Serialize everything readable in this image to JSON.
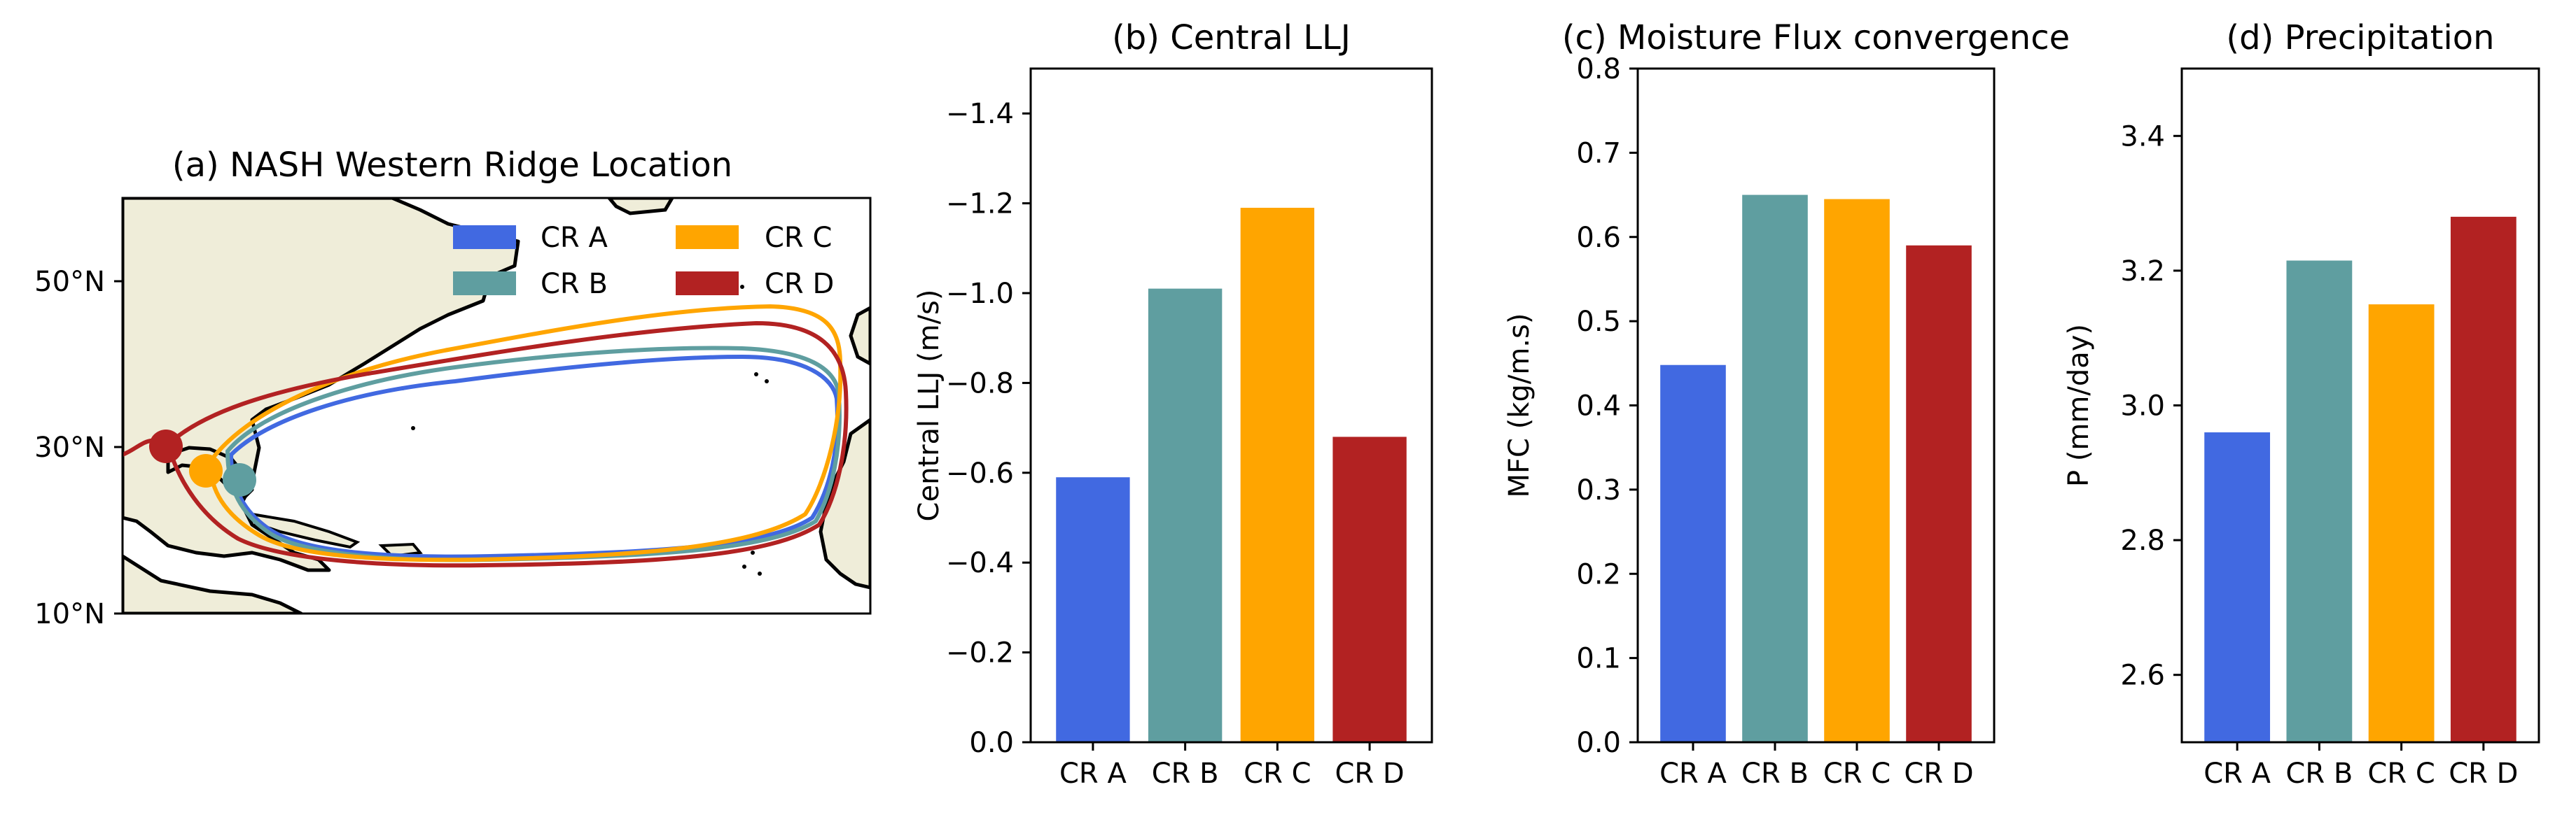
{
  "colors": {
    "CR A": "#4169e1",
    "CR B": "#5f9ea0",
    "CR C": "#ffa500",
    "CR D": "#b22222",
    "land": "#efedd9",
    "ocean": "#ffffff"
  },
  "chart_data": [
    {
      "id": "a",
      "type": "map",
      "title": "(a) NASH Western Ridge Location",
      "ytick_labels": [
        "50°N",
        "30°N",
        "10°N"
      ],
      "legend": {
        "entries": [
          "CR A",
          "CR B",
          "CR C",
          "CR D"
        ],
        "position": "top-right"
      },
      "markers": [
        {
          "name": "CR A",
          "lon": -86,
          "lat": 27
        },
        {
          "name": "CR B",
          "lon": -84,
          "lat": 26.5
        },
        {
          "name": "CR C",
          "lon": -89,
          "lat": 27
        },
        {
          "name": "CR D",
          "lon": -94,
          "lat": 30
        }
      ]
    },
    {
      "id": "b",
      "type": "bar",
      "title": "(b) Central LLJ",
      "ylabel": "Central LLJ (m/s)",
      "categories": [
        "CR A",
        "CR B",
        "CR C",
        "CR D"
      ],
      "values": [
        -0.59,
        -1.01,
        -1.19,
        -0.68
      ],
      "ylim": [
        0.0,
        -1.5
      ],
      "yticks": [
        0.0,
        -0.2,
        -0.4,
        -0.6,
        -0.8,
        -1.0,
        -1.2,
        -1.4
      ],
      "ytick_labels": [
        "0.0",
        "−0.2",
        "−0.4",
        "−0.6",
        "−0.8",
        "−1.0",
        "−1.2",
        "−1.4"
      ]
    },
    {
      "id": "c",
      "type": "bar",
      "title": "(c) Moisture Flux convergence",
      "ylabel": "MFC (kg/m.s)",
      "categories": [
        "CR A",
        "CR B",
        "CR C",
        "CR D"
      ],
      "values": [
        0.448,
        0.65,
        0.645,
        0.59
      ],
      "ylim": [
        0.0,
        0.8
      ],
      "yticks": [
        0.0,
        0.1,
        0.2,
        0.3,
        0.4,
        0.5,
        0.6,
        0.7,
        0.8
      ],
      "ytick_labels": [
        "0.0",
        "0.1",
        "0.2",
        "0.3",
        "0.4",
        "0.5",
        "0.6",
        "0.7",
        "0.8"
      ]
    },
    {
      "id": "d",
      "type": "bar",
      "title": "(d) Precipitation",
      "ylabel": "P (mm/day)",
      "categories": [
        "CR A",
        "CR B",
        "CR C",
        "CR D"
      ],
      "values": [
        2.96,
        3.215,
        3.15,
        3.28
      ],
      "ylim": [
        2.5,
        3.5
      ],
      "yticks": [
        2.6,
        2.8,
        3.0,
        3.2,
        3.4
      ],
      "ytick_labels": [
        "2.6",
        "2.8",
        "3.0",
        "3.2",
        "3.4"
      ]
    }
  ]
}
